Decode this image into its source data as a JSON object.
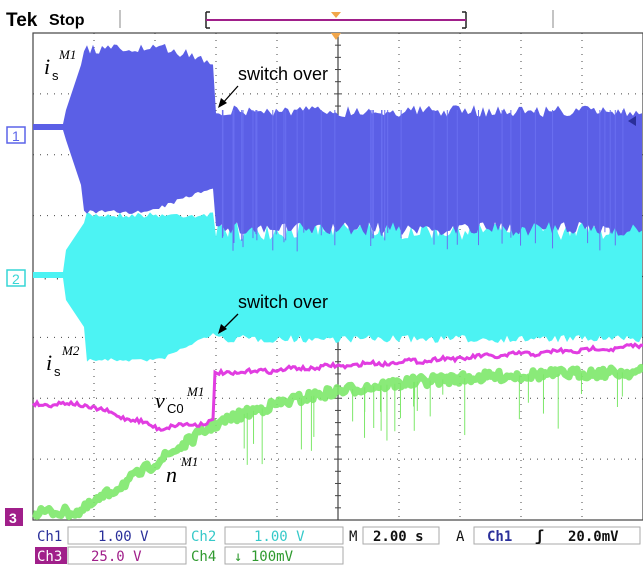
{
  "header": {
    "brand": "Tek",
    "state": "Stop"
  },
  "channel_markers": [
    {
      "label": "1",
      "color": "#5b64e8"
    },
    {
      "label": "2",
      "color": "#36d6d6"
    },
    {
      "label": "3",
      "color": "#a01f8a"
    }
  ],
  "annotations": {
    "switch_over_1": "switch over",
    "switch_over_2": "switch over",
    "is_m1_base": "i",
    "is_m1_sub": "s",
    "is_m1_sup": "M1",
    "is_m2_base": "i",
    "is_m2_sub": "s",
    "is_m2_sup": "M2",
    "vc0_base": "v",
    "vc0_sub": "C0",
    "vc0_sup": "M1",
    "n_base": "n",
    "n_sup": "M1"
  },
  "readouts": {
    "ch1_label": "Ch1",
    "ch1_scale": "1.00 V",
    "ch2_label": "Ch2",
    "ch2_scale": "1.00 V",
    "ch3_label": "Ch3",
    "ch3_scale": "25.0 V",
    "ch4_label": "Ch4",
    "ch4_scale": "↓ 100mV",
    "timebase_prefix": "M",
    "timebase": "2.00 s",
    "trigger_prefix": "A",
    "trigger_source": "Ch1",
    "trigger_slope": "ʃ",
    "trigger_level": "20.0mV"
  },
  "colors": {
    "ch1": "#5b5fe6",
    "ch2": "#4cf3f3",
    "ch3": "#e13de1",
    "ch4": "#7de86a",
    "grid": "#444444",
    "trigger": "#f2a64a",
    "record_bar": "#a01f8a"
  }
}
